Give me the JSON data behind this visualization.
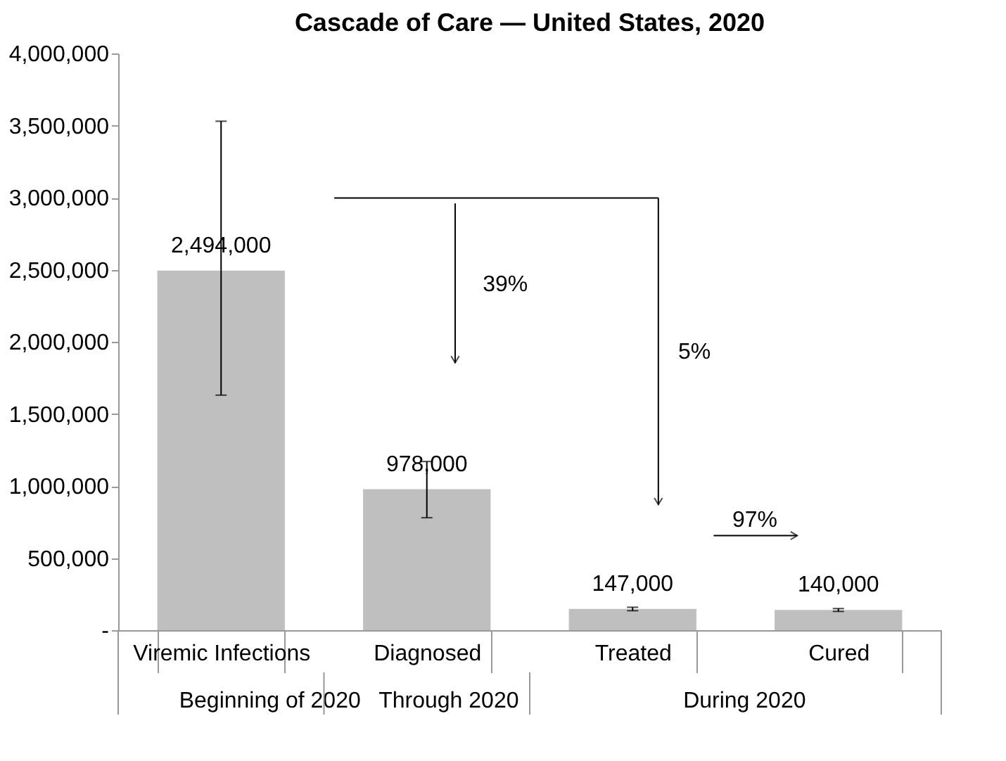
{
  "chart_data": {
    "type": "bar",
    "title": "Cascade of Care — United States, 2020",
    "categories": [
      "Viremic Infections",
      "Diagnosed",
      "Treated",
      "Cured"
    ],
    "values": [
      2494000,
      978000,
      147000,
      140000
    ],
    "value_labels": [
      "2,494,000",
      "978,000",
      "147,000",
      "140,000"
    ],
    "errors": [
      [
        1630000,
        3530000
      ],
      [
        780000,
        1170000
      ],
      [
        135000,
        159000
      ],
      [
        130000,
        150000
      ]
    ],
    "color": "#bfbfbf",
    "ylim": [
      0,
      4000000
    ],
    "yticks": [
      {
        "value": 0,
        "label": "-"
      },
      {
        "value": 500000,
        "label": "500,000"
      },
      {
        "value": 1000000,
        "label": "1,000,000"
      },
      {
        "value": 1500000,
        "label": "1,500,000"
      },
      {
        "value": 2000000,
        "label": "2,000,000"
      },
      {
        "value": 2500000,
        "label": "2,500,000"
      },
      {
        "value": 3000000,
        "label": "3,000,000"
      },
      {
        "value": 3500000,
        "label": "3,500,000"
      },
      {
        "value": 4000000,
        "label": "4,000,000"
      }
    ],
    "annotations": [
      "39%",
      "5%",
      "97%",
      "Beginning of 2020",
      "Through 2020",
      "During 2020"
    ],
    "grid": false
  }
}
